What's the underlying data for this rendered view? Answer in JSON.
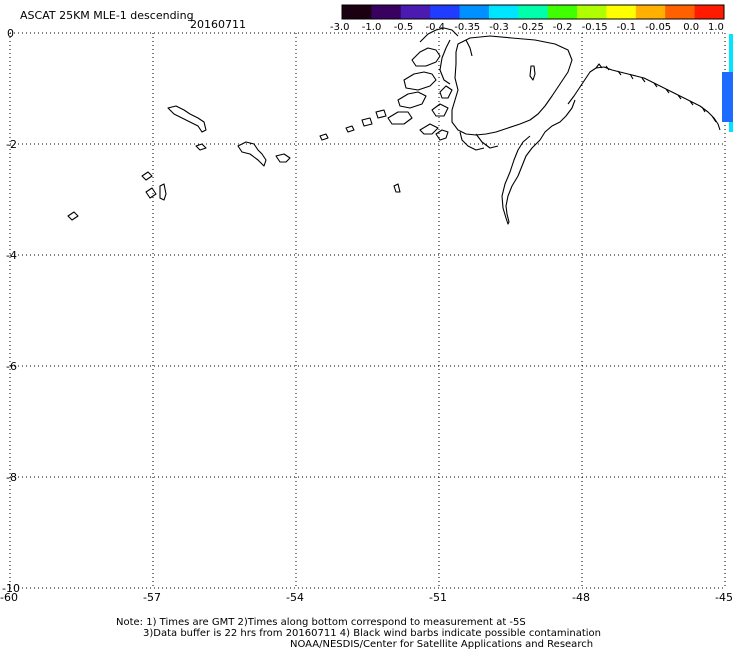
{
  "header": {
    "title": "ASCAT 25KM MLE-1 descending",
    "date": "20160711"
  },
  "colorbar": {
    "colors": [
      "#1a0010",
      "#3a0060",
      "#4b1ab0",
      "#1f3cff",
      "#0090ff",
      "#00e5ff",
      "#00ffaa",
      "#40ff00",
      "#b0ff00",
      "#ffff00",
      "#ffb000",
      "#ff6000",
      "#ff1a00"
    ],
    "tick_labels": [
      "-3.0",
      "-1.0",
      "-0.5",
      "-0.4",
      "-0.35",
      "-0.3",
      "-0.25",
      "-0.2",
      "-0.15",
      "-0.1",
      "-0.05",
      "0.0",
      "1.0"
    ]
  },
  "map": {
    "x_tick_labels": [
      "-60",
      "-57",
      "-54",
      "-51",
      "-48",
      "-45"
    ],
    "y_tick_labels": [
      "0",
      "-2",
      "-4",
      "-6",
      "-8",
      "-10"
    ],
    "coastline_color": "#000000",
    "swath_color": "#1e6bff"
  },
  "notes": {
    "line1": "Note: 1) Times are GMT 2)Times along bottom correspond to measurement at -5S",
    "line2": "3)Data buffer is 22 hrs from 20160711 4) Black wind barbs indicate possible contamination",
    "line3": "NOAA/NESDIS/Center for Satellite Applications and Research"
  }
}
